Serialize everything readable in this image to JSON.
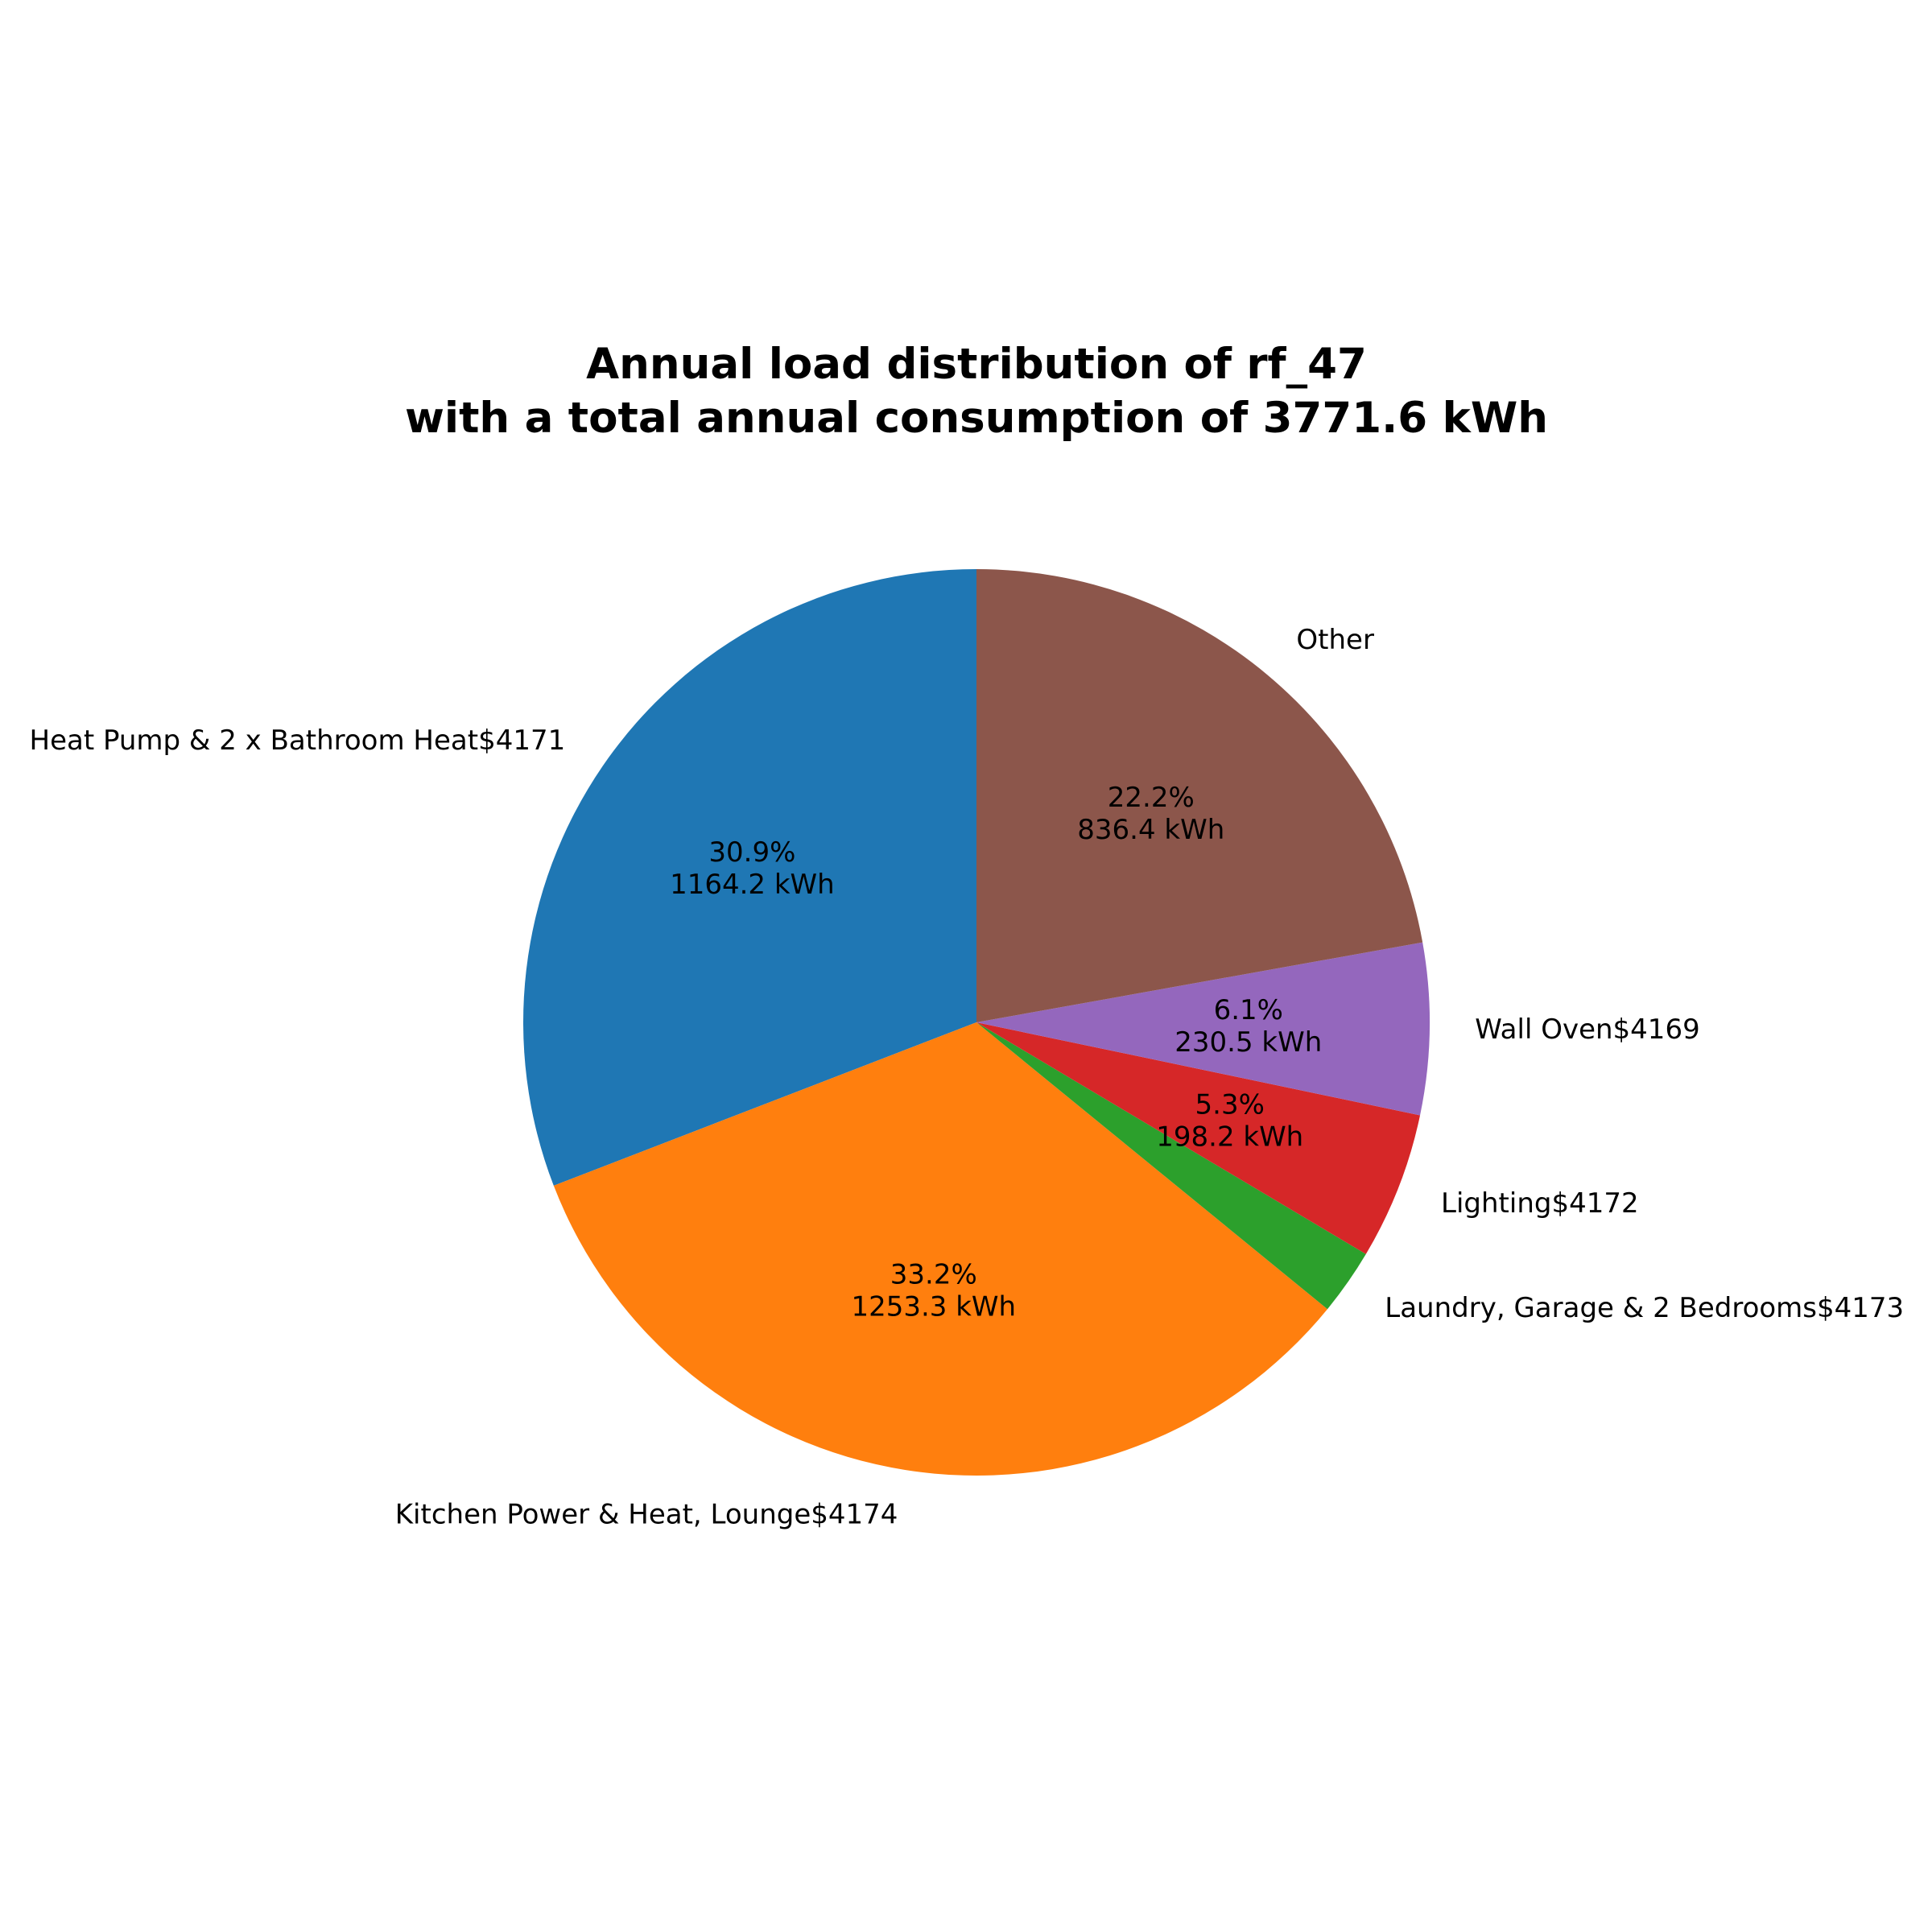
{
  "chart_data": {
    "type": "pie",
    "title_lines": [
      "Annual load distribution of rf_47",
      "with a total annual consumption of 3771.6 kWh"
    ],
    "start_angle_deg": 90,
    "direction": "counterclockwise",
    "slices": [
      {
        "label": "Heat Pump & 2 x Bathroom Heat$4171",
        "percent_label": "30.9%",
        "value_label": "1164.2 kWh",
        "value": 1164.2,
        "color": "#1f77b4"
      },
      {
        "label": "Kitchen Power & Heat, Lounge$4174",
        "percent_label": "33.2%",
        "value_label": "1253.3 kWh",
        "value": 1253.3,
        "color": "#ff7f0e"
      },
      {
        "label": "Laundry, Garage & 2 Bedrooms$4173",
        "percent_label": "",
        "value_label": "",
        "value": 89.0,
        "color": "#2ca02c"
      },
      {
        "label": "Lighting$4172",
        "percent_label": "5.3%",
        "value_label": "198.2 kWh",
        "value": 198.2,
        "color": "#d62728"
      },
      {
        "label": "Wall Oven$4169",
        "percent_label": "6.1%",
        "value_label": "230.5 kWh",
        "value": 230.5,
        "color": "#9467bd"
      },
      {
        "label": "Other",
        "percent_label": "22.2%",
        "value_label": "836.4 kWh",
        "value": 836.4,
        "color": "#8c564b"
      }
    ]
  }
}
